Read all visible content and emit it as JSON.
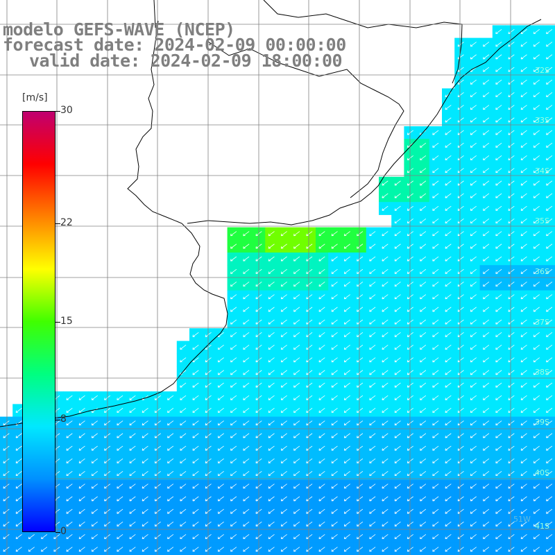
{
  "title": {
    "line1": "modelo GEFS-WAVE (NCEP)",
    "line2": "forecast date: 2024-02-09 00:00:00",
    "line3": "valid date: 2024-02-09 18:00:00"
  },
  "colorbar": {
    "unit": "[m/s]",
    "ticks": [
      "30",
      "22",
      "15",
      "8",
      "0"
    ],
    "tick_values": [
      30,
      22,
      15,
      8,
      0
    ],
    "min": 0,
    "max": 30,
    "colors": [
      "#0000ff",
      "#0090ff",
      "#00e8ff",
      "#00ff80",
      "#40ff00",
      "#ffff00",
      "#ff8000",
      "#ff0000",
      "#c00070"
    ]
  },
  "map": {
    "lat_labels": [
      "32S",
      "33S",
      "34S",
      "35S",
      "36S",
      "37S",
      "38S",
      "39S",
      "40S",
      "41S"
    ],
    "lon_labels": [
      "51W"
    ],
    "land_color": "#ffffff",
    "grid_color": "#808080",
    "arrow_color": "#ffffff"
  }
}
